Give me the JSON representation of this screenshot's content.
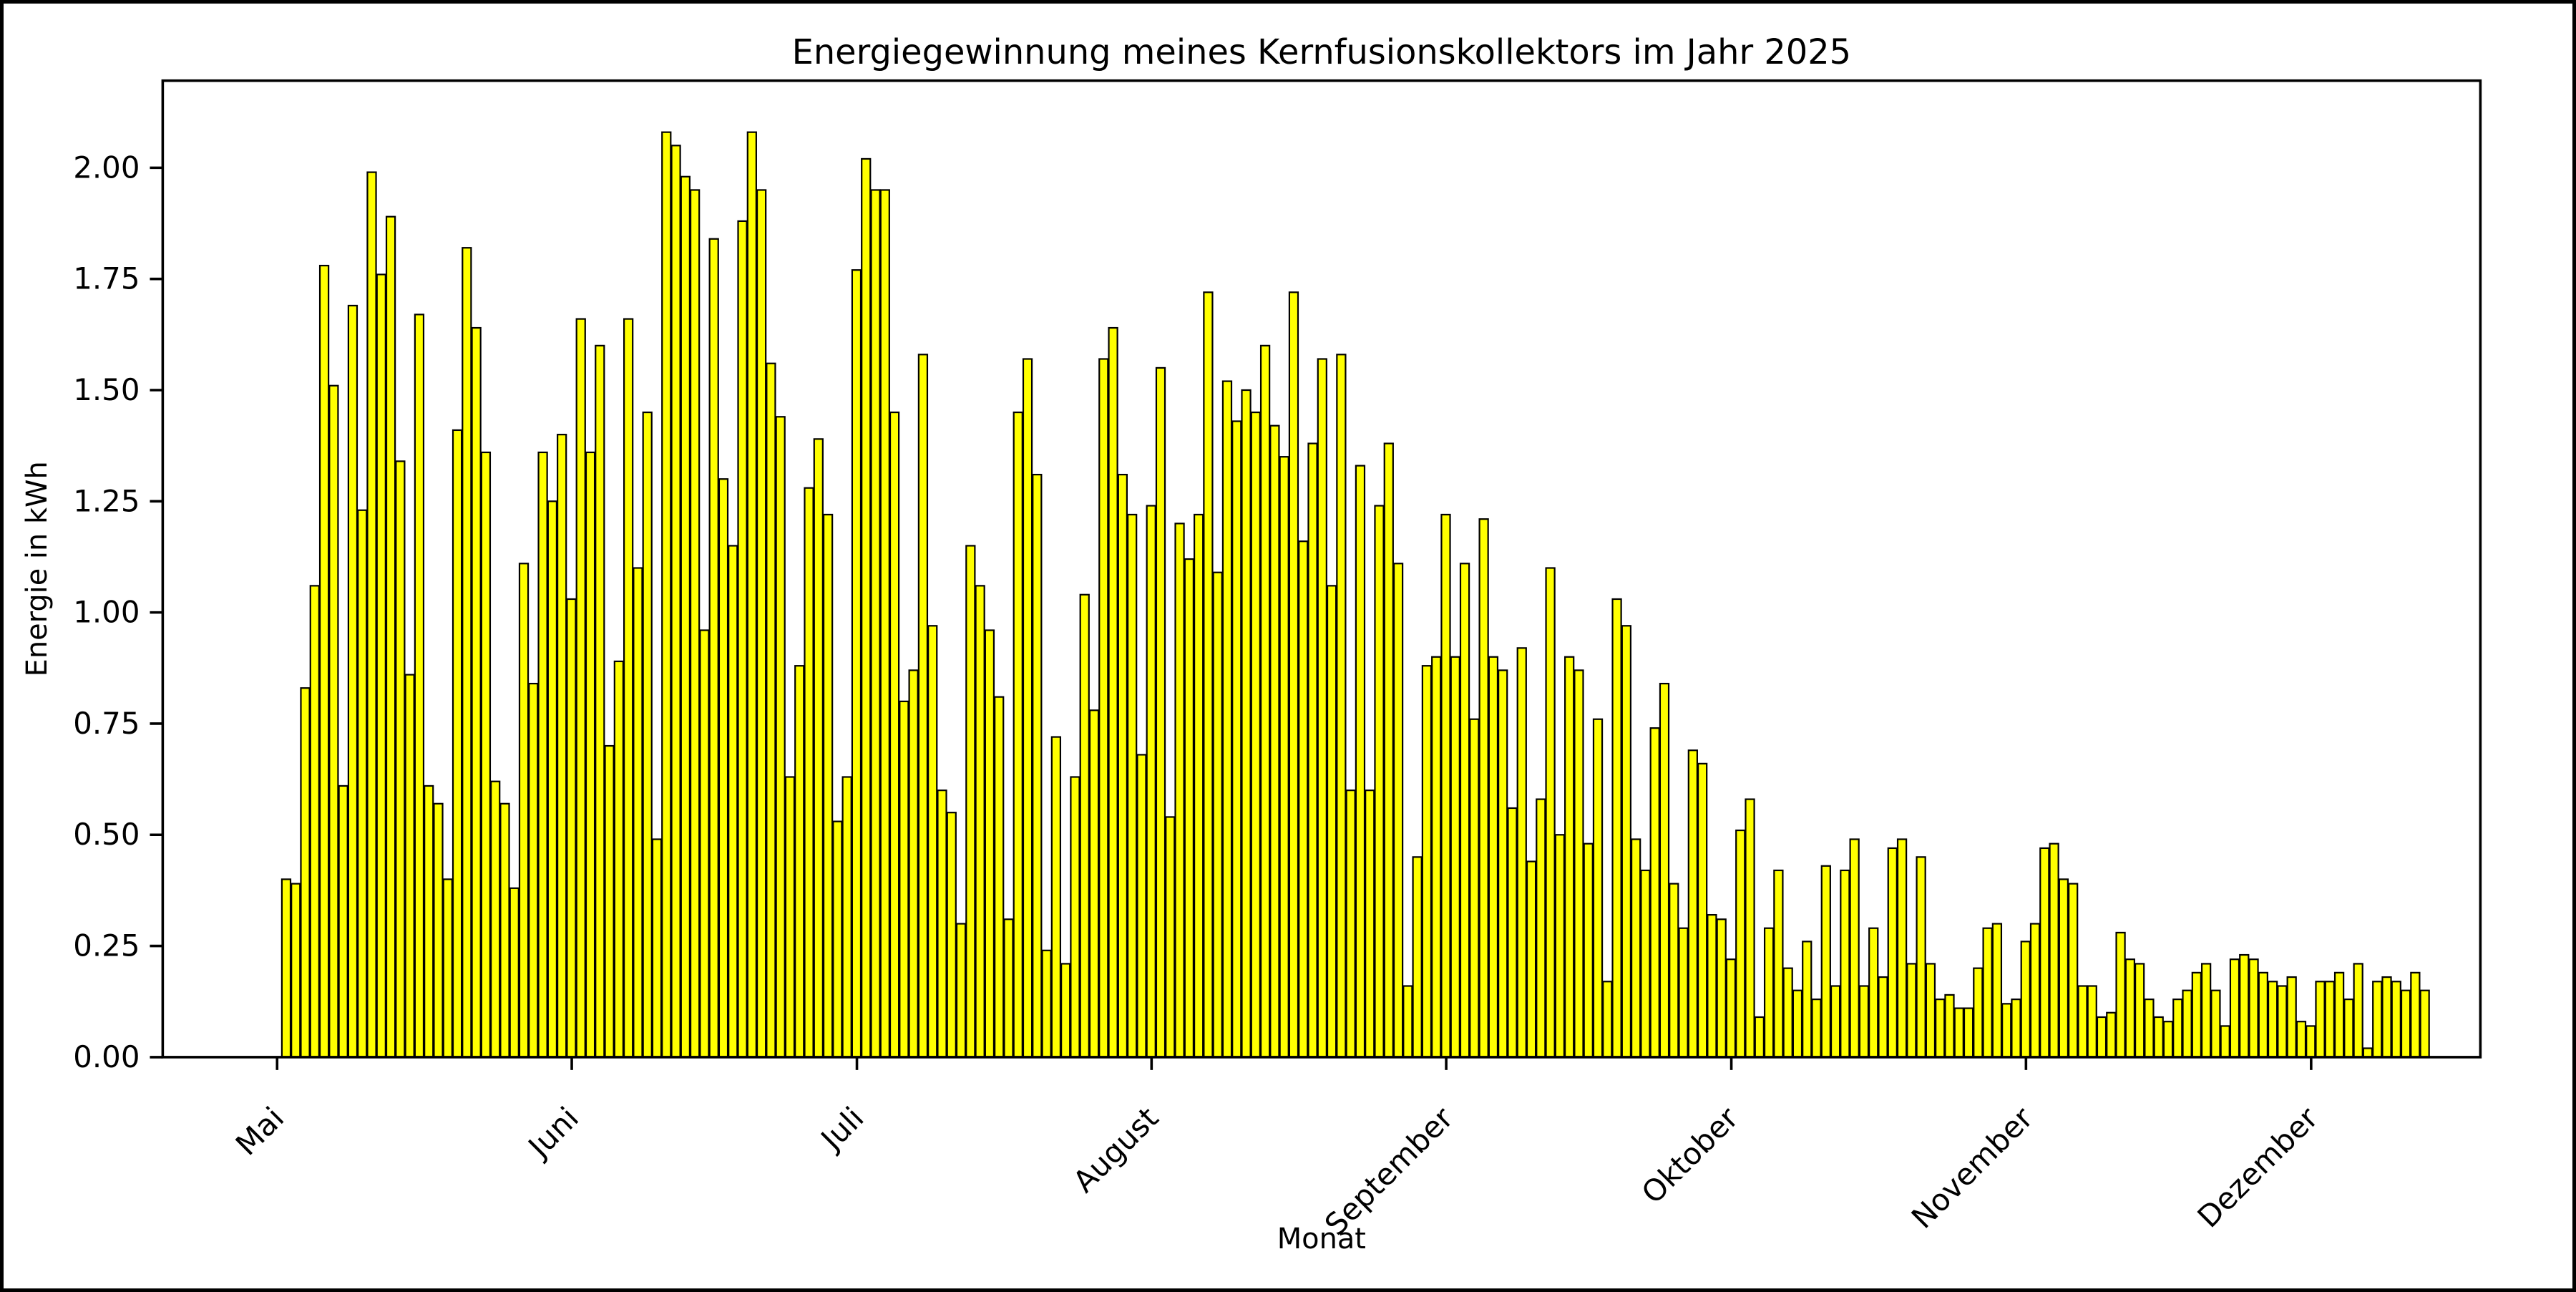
{
  "figure": {
    "title": "Energiegewinnung meines Kernfusionskollektors im Jahr 2025",
    "xlabel": "Monat",
    "ylabel": "Energie in kWh"
  },
  "chart_data": {
    "type": "bar",
    "title": "Energiegewinnung meines Kernfusionskollektors im Jahr 2025",
    "xlabel": "Monat",
    "ylabel": "Energie in kWh",
    "ylim": [
      0,
      2.2
    ],
    "yticks": [
      0.0,
      0.25,
      0.5,
      0.75,
      1.0,
      1.25,
      1.5,
      1.75,
      2.0
    ],
    "ytick_labels": [
      "0.00",
      "0.25",
      "0.50",
      "0.75",
      "1.00",
      "1.25",
      "1.50",
      "1.75",
      "2.00"
    ],
    "grid": false,
    "legend": "none",
    "bar_color": "#ffff00",
    "bar_edge_color": "#000000",
    "background": "#ffffff",
    "x_unit": "Tag (tägliche Werte, 2. Mai – 13. Dezember 2025)",
    "n_bars": 226,
    "months": [
      {
        "label": "Mai",
        "tick_offset": -1,
        "values": [
          0.4,
          0.39,
          0.83,
          1.06,
          1.78,
          1.51,
          0.61,
          1.69,
          1.23,
          1.99,
          1.76,
          1.89,
          1.34,
          0.86,
          1.67,
          0.61,
          0.57,
          0.4,
          1.41,
          1.82,
          1.64,
          1.36,
          0.62,
          0.57,
          0.38,
          1.11,
          0.84,
          1.36,
          1.25,
          1.4
        ]
      },
      {
        "label": "Juni",
        "tick_offset": 30,
        "values": [
          1.03,
          1.66,
          1.36,
          1.6,
          0.7,
          0.89,
          1.66,
          1.1,
          1.45,
          0.49,
          2.08,
          2.05,
          1.98,
          1.95,
          0.96,
          1.84,
          1.3,
          1.15,
          1.88,
          2.08,
          1.95,
          1.56,
          1.44,
          0.63,
          0.88,
          1.28,
          1.39,
          1.22,
          0.53,
          0.63
        ]
      },
      {
        "label": "Juli",
        "tick_offset": 60,
        "values": [
          1.77,
          2.02,
          1.95,
          1.95,
          1.45,
          0.8,
          0.87,
          1.58,
          0.97,
          0.6,
          0.55,
          0.3,
          1.15,
          1.06,
          0.96,
          0.81,
          0.31,
          1.45,
          1.57,
          1.31,
          0.24,
          0.72,
          0.21,
          0.63,
          1.04,
          0.78,
          1.57,
          1.64,
          1.31,
          1.22,
          0.68
        ]
      },
      {
        "label": "August",
        "tick_offset": 91,
        "values": [
          1.24,
          1.55,
          0.54,
          1.2,
          1.12,
          1.22,
          1.72,
          1.09,
          1.52,
          1.43,
          1.5,
          1.45,
          1.6,
          1.42,
          1.35,
          1.72,
          1.16,
          1.38,
          1.57,
          1.06,
          1.58,
          0.6,
          1.33,
          0.6,
          1.24,
          1.38,
          1.11,
          0.16,
          0.45,
          0.88,
          0.9
        ]
      },
      {
        "label": "September",
        "tick_offset": 122,
        "values": [
          1.22,
          0.9,
          1.11,
          0.76,
          1.21,
          0.9,
          0.87,
          0.56,
          0.92,
          0.44,
          0.58,
          1.1,
          0.5,
          0.9,
          0.87,
          0.48,
          0.76,
          0.17,
          1.03,
          0.97,
          0.49,
          0.42,
          0.74,
          0.84,
          0.39,
          0.29,
          0.69,
          0.66,
          0.32,
          0.31
        ]
      },
      {
        "label": "Oktober",
        "tick_offset": 152,
        "values": [
          0.22,
          0.51,
          0.58,
          0.09,
          0.29,
          0.42,
          0.2,
          0.15,
          0.26,
          0.13,
          0.43,
          0.16,
          0.42,
          0.49,
          0.16,
          0.29,
          0.18,
          0.47,
          0.49,
          0.21,
          0.45,
          0.21,
          0.13,
          0.14,
          0.11,
          0.11,
          0.2,
          0.29,
          0.3,
          0.12,
          0.13
        ]
      },
      {
        "label": "November",
        "tick_offset": 183,
        "values": [
          0.26,
          0.3,
          0.47,
          0.48,
          0.4,
          0.39,
          0.16,
          0.16,
          0.09,
          0.1,
          0.28,
          0.22,
          0.21,
          0.13,
          0.09,
          0.08,
          0.13,
          0.15,
          0.19,
          0.21,
          0.15,
          0.07,
          0.22,
          0.23,
          0.22,
          0.19,
          0.17,
          0.16,
          0.18,
          0.08
        ]
      },
      {
        "label": "Dezember",
        "tick_offset": 213,
        "values": [
          0.07,
          0.17,
          0.17,
          0.19,
          0.13,
          0.21,
          0.02,
          0.17,
          0.18,
          0.17,
          0.15,
          0.19,
          0.15
        ]
      }
    ]
  }
}
